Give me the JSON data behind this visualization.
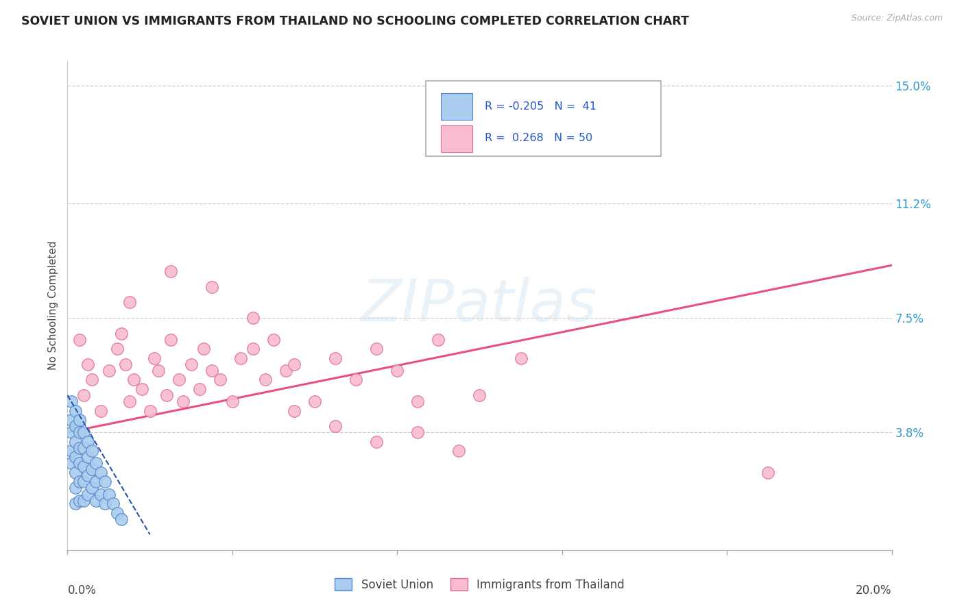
{
  "title": "SOVIET UNION VS IMMIGRANTS FROM THAILAND NO SCHOOLING COMPLETED CORRELATION CHART",
  "source_text": "Source: ZipAtlas.com",
  "ylabel": "No Schooling Completed",
  "xmin": 0.0,
  "xmax": 0.2,
  "ymin": 0.0,
  "ymax": 0.158,
  "xtick_positions": [
    0.0,
    0.04,
    0.08,
    0.12,
    0.16,
    0.2
  ],
  "right_ytick_positions": [
    0.0,
    0.038,
    0.075,
    0.112,
    0.15
  ],
  "right_ytick_labels": [
    "",
    "3.8%",
    "7.5%",
    "11.2%",
    "15.0%"
  ],
  "watermark": "ZIPatlas",
  "soviet_fill_color": "#aaccee",
  "soviet_edge_color": "#5588cc",
  "soviet_line_color": "#2255aa",
  "thailand_fill_color": "#f8bbd0",
  "thailand_edge_color": "#e07090",
  "thailand_line_color": "#e8507a",
  "bg_color": "#ffffff",
  "grid_color": "#cccccc",
  "title_color": "#222222",
  "label_color": "#444444",
  "axis_tick_color": "#3399cc",
  "soviet_x": [
    0.001,
    0.001,
    0.001,
    0.001,
    0.001,
    0.002,
    0.002,
    0.002,
    0.002,
    0.002,
    0.002,
    0.002,
    0.003,
    0.003,
    0.003,
    0.003,
    0.003,
    0.003,
    0.004,
    0.004,
    0.004,
    0.004,
    0.004,
    0.005,
    0.005,
    0.005,
    0.005,
    0.006,
    0.006,
    0.006,
    0.007,
    0.007,
    0.007,
    0.008,
    0.008,
    0.009,
    0.009,
    0.01,
    0.011,
    0.012,
    0.013
  ],
  "soviet_y": [
    0.048,
    0.042,
    0.038,
    0.032,
    0.028,
    0.045,
    0.04,
    0.035,
    0.03,
    0.025,
    0.02,
    0.015,
    0.042,
    0.038,
    0.033,
    0.028,
    0.022,
    0.016,
    0.038,
    0.033,
    0.027,
    0.022,
    0.016,
    0.035,
    0.03,
    0.024,
    0.018,
    0.032,
    0.026,
    0.02,
    0.028,
    0.022,
    0.016,
    0.025,
    0.018,
    0.022,
    0.015,
    0.018,
    0.015,
    0.012,
    0.01
  ],
  "soviet_trendline_x": [
    0.0,
    0.02
  ],
  "soviet_trendline_y": [
    0.05,
    0.005
  ],
  "thailand_x": [
    0.003,
    0.004,
    0.005,
    0.006,
    0.008,
    0.01,
    0.012,
    0.013,
    0.014,
    0.015,
    0.016,
    0.018,
    0.02,
    0.021,
    0.022,
    0.024,
    0.025,
    0.027,
    0.028,
    0.03,
    0.032,
    0.033,
    0.035,
    0.037,
    0.04,
    0.042,
    0.045,
    0.048,
    0.05,
    0.053,
    0.055,
    0.06,
    0.065,
    0.07,
    0.075,
    0.08,
    0.085,
    0.09,
    0.1,
    0.11,
    0.015,
    0.025,
    0.035,
    0.045,
    0.055,
    0.065,
    0.075,
    0.085,
    0.095,
    0.17
  ],
  "thailand_y": [
    0.068,
    0.05,
    0.06,
    0.055,
    0.045,
    0.058,
    0.065,
    0.07,
    0.06,
    0.048,
    0.055,
    0.052,
    0.045,
    0.062,
    0.058,
    0.05,
    0.068,
    0.055,
    0.048,
    0.06,
    0.052,
    0.065,
    0.058,
    0.055,
    0.048,
    0.062,
    0.065,
    0.055,
    0.068,
    0.058,
    0.06,
    0.048,
    0.062,
    0.055,
    0.065,
    0.058,
    0.048,
    0.068,
    0.05,
    0.062,
    0.08,
    0.09,
    0.085,
    0.075,
    0.045,
    0.04,
    0.035,
    0.038,
    0.032,
    0.025
  ],
  "thailand_trendline_x": [
    0.0,
    0.2
  ],
  "thailand_trendline_y": [
    0.038,
    0.092
  ]
}
